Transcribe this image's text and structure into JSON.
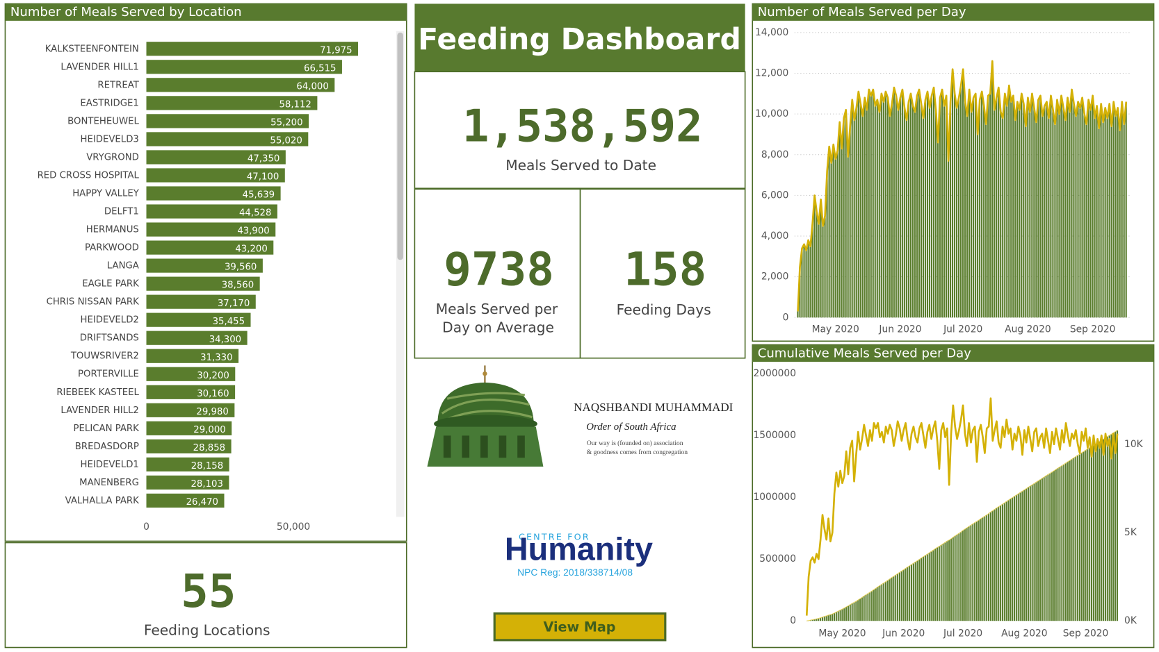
{
  "chart_data": [
    {
      "type": "bar",
      "orientation": "horizontal",
      "title": "Number of Meals Served by Location",
      "color": "#5a7d2d",
      "categories": [
        "KALKSTEENFONTEIN",
        "LAVENDER HILL1",
        "RETREAT",
        "EASTRIDGE1",
        "BONTEHEUWEL",
        "HEIDEVELD3",
        "VRYGROND",
        "RED CROSS HOSPITAL",
        "HAPPY VALLEY",
        "DELFT1",
        "HERMANUS",
        "PARKWOOD",
        "LANGA",
        "EAGLE PARK",
        "CHRIS NISSAN PARK",
        "HEIDEVELD2",
        "DRIFTSANDS",
        "TOUWSRIVER2",
        "PORTERVILLE",
        "RIEBEEK KASTEEL",
        "LAVENDER HILL2",
        "PELICAN PARK",
        "BREDASDORP",
        "HEIDEVELD1",
        "MANENBERG",
        "VALHALLA PARK"
      ],
      "values": [
        71975,
        66515,
        64000,
        58112,
        55200,
        55020,
        47350,
        47100,
        45639,
        44528,
        43900,
        43200,
        39560,
        38560,
        37170,
        35455,
        34300,
        31330,
        30200,
        30160,
        29980,
        29000,
        28858,
        28158,
        28103,
        26470
      ],
      "value_labels": [
        "71,975",
        "66,515",
        "64,000",
        "58,112",
        "55,200",
        "55,020",
        "47,350",
        "47,100",
        "45,639",
        "44,528",
        "43,900",
        "43,200",
        "39,560",
        "38,560",
        "37,170",
        "35,455",
        "34,300",
        "31,330",
        "30,200",
        "30,160",
        "29,980",
        "29,000",
        "28,858",
        "28,158",
        "28,103",
        "26,470"
      ],
      "xlim": [
        0,
        85000
      ],
      "xticks": [
        0,
        {
          "value": 50000,
          "label": "50,000"
        }
      ]
    },
    {
      "type": "combo",
      "title": "Number of Meals Served per Day",
      "grid": true,
      "categories": [
        null,
        null,
        null,
        null,
        null,
        null,
        null,
        null,
        null,
        null,
        null,
        null,
        null,
        null,
        null,
        null,
        null,
        null,
        "May 2020",
        null,
        null,
        null,
        null,
        null,
        null,
        null,
        null,
        null,
        null,
        null,
        null,
        null,
        null,
        null,
        null,
        null,
        null,
        null,
        null,
        null,
        null,
        null,
        null,
        null,
        null,
        null,
        null,
        null,
        null,
        "Jun 2020",
        null,
        null,
        null,
        null,
        null,
        null,
        null,
        null,
        null,
        null,
        null,
        null,
        null,
        null,
        null,
        null,
        null,
        null,
        null,
        null,
        null,
        null,
        null,
        null,
        null,
        null,
        null,
        null,
        null,
        "Jul 2020",
        null,
        null,
        null,
        null,
        null,
        null,
        null,
        null,
        null,
        null,
        null,
        null,
        null,
        null,
        null,
        null,
        null,
        null,
        null,
        null,
        null,
        null,
        null,
        null,
        null,
        null,
        null,
        null,
        null,
        null,
        "Aug 2020",
        null,
        null,
        null,
        null,
        null,
        null,
        null,
        null,
        null,
        null,
        null,
        null,
        null,
        null,
        null,
        null,
        null,
        null,
        null,
        null,
        null,
        null,
        null,
        null,
        null,
        null,
        null,
        null,
        null,
        null,
        "Sep 2020",
        null,
        null,
        null,
        null,
        null,
        null,
        null,
        null,
        null,
        null,
        null,
        null,
        null,
        null,
        null,
        null
      ],
      "ylim": [
        0,
        14000
      ],
      "yticks": [
        0,
        {
          "value": 2000,
          "label": "2,000"
        },
        {
          "value": 4000,
          "label": "4,000"
        },
        {
          "value": 6000,
          "label": "6,000"
        },
        {
          "value": 8000,
          "label": "8,000"
        },
        {
          "value": 10000,
          "label": "10,000"
        },
        {
          "value": 12000,
          "label": "12,000"
        },
        {
          "value": 14000,
          "label": "14,000"
        }
      ],
      "series": [
        {
          "type": "bar",
          "color": "#5a7d2d",
          "line_color": "#d4b106",
          "values": [
            300,
            2500,
            3400,
            3600,
            3300,
            3800,
            3500,
            4600,
            6000,
            5200,
            4600,
            5800,
            4500,
            5000,
            7200,
            8400,
            7600,
            8500,
            7800,
            8200,
            9600,
            8300,
            9800,
            10200,
            7900,
            9400,
            10700,
            9700,
            10300,
            11100,
            10500,
            9900,
            10800,
            10200,
            11200,
            10900,
            11200,
            10400,
            10700,
            10100,
            11000,
            10600,
            11100,
            10800,
            9900,
            10500,
            11300,
            10900,
            10200,
            10800,
            11200,
            10300,
            9700,
            10600,
            11000,
            10400,
            10100,
            10900,
            11200,
            10500,
            9800,
            10700,
            11100,
            10300,
            10900,
            11300,
            10200,
            8600,
            10800,
            11200,
            10400,
            10900,
            7700,
            10600,
            12200,
            11000,
            10300,
            10800,
            11400,
            12200,
            10600,
            9900,
            11200,
            10100,
            10800,
            11000,
            9000,
            10700,
            11100,
            10400,
            9500,
            10900,
            11000,
            12600,
            10200,
            10800,
            11300,
            10100,
            9800,
            11000,
            10400,
            11400,
            10600,
            10900,
            9700,
            10600,
            10200,
            11000,
            10500,
            9400,
            10800,
            10100,
            11000,
            10300,
            9600,
            10700,
            10900,
            9900,
            10400,
            10600,
            9800,
            10900,
            10200,
            9500,
            10700,
            10000,
            10900,
            10300,
            9700,
            10800,
            10100,
            11200,
            10500,
            9900,
            10600,
            10300,
            10800,
            10000,
            9500,
            10700,
            10200,
            10900,
            9800,
            10400,
            9300,
            10500,
            9600,
            10300,
            9800,
            10500,
            9400,
            10600,
            9900,
            10300,
            9200,
            10600,
            9500,
            10600
          ]
        }
      ]
    },
    {
      "type": "combo",
      "title": "Cumulative Meals Served per Day",
      "grid": false,
      "categories": [
        null,
        null,
        null,
        null,
        null,
        null,
        null,
        null,
        null,
        null,
        null,
        null,
        null,
        null,
        null,
        null,
        null,
        null,
        "May 2020",
        null,
        null,
        null,
        null,
        null,
        null,
        null,
        null,
        null,
        null,
        null,
        null,
        null,
        null,
        null,
        null,
        null,
        null,
        null,
        null,
        null,
        null,
        null,
        null,
        null,
        null,
        null,
        null,
        null,
        null,
        "Jun 2020",
        null,
        null,
        null,
        null,
        null,
        null,
        null,
        null,
        null,
        null,
        null,
        null,
        null,
        null,
        null,
        null,
        null,
        null,
        null,
        null,
        null,
        null,
        null,
        null,
        null,
        null,
        null,
        null,
        null,
        "Jul 2020",
        null,
        null,
        null,
        null,
        null,
        null,
        null,
        null,
        null,
        null,
        null,
        null,
        null,
        null,
        null,
        null,
        null,
        null,
        null,
        null,
        null,
        null,
        null,
        null,
        null,
        null,
        null,
        null,
        null,
        null,
        "Aug 2020",
        null,
        null,
        null,
        null,
        null,
        null,
        null,
        null,
        null,
        null,
        null,
        null,
        null,
        null,
        null,
        null,
        null,
        null,
        null,
        null,
        null,
        null,
        null,
        null,
        null,
        null,
        null,
        null,
        null,
        null,
        "Sep 2020",
        null,
        null,
        null,
        null,
        null,
        null,
        null,
        null,
        null,
        null,
        null,
        null,
        null,
        null,
        null,
        null
      ],
      "ylim": [
        0,
        2000000
      ],
      "yticks": [
        0,
        500000,
        1000000,
        1500000,
        2000000
      ],
      "y2lim": [
        0,
        14000
      ],
      "y2ticks": [
        {
          "value": 0,
          "label": "0K"
        },
        {
          "value": 5000,
          "label": "5K"
        },
        {
          "value": 10000,
          "label": "10K"
        }
      ],
      "series": [
        {
          "type": "bar",
          "color": "#5a7d2d",
          "line_color": "#e3cf5a",
          "values": [
            300,
            2800,
            6200,
            9800,
            13100,
            16900,
            20400,
            25000,
            31000,
            36200,
            40800,
            46600,
            51100,
            56100,
            63300,
            71700,
            79300,
            87800,
            95600,
            103800,
            113400,
            121700,
            131500,
            141700,
            149600,
            159000,
            169700,
            179400,
            189700,
            200800,
            211300,
            221200,
            232000,
            242200,
            253400,
            264300,
            275500,
            285900,
            296600,
            306700,
            317700,
            328300,
            339400,
            350200,
            360100,
            370600,
            381900,
            392800,
            403000,
            413800,
            425000,
            435300,
            445000,
            455600,
            466600,
            477000,
            487100,
            498000,
            509200,
            519700,
            529500,
            540200,
            551300,
            561600,
            572500,
            583800,
            594000,
            602600,
            613400,
            624600,
            635000,
            645900,
            653600,
            664200,
            676400,
            687400,
            697700,
            708500,
            719900,
            732100,
            742700,
            752600,
            763800,
            773900,
            784700,
            795700,
            804700,
            815400,
            826500,
            836900,
            846400,
            857300,
            868300,
            880900,
            891100,
            901900,
            913200,
            923300,
            933100,
            944100,
            954500,
            965900,
            976500,
            987400,
            997100,
            1007700,
            1017900,
            1028900,
            1039400,
            1048800,
            1059600,
            1069700,
            1080700,
            1091000,
            1100600,
            1111300,
            1122200,
            1132100,
            1142500,
            1153100,
            1162900,
            1173800,
            1184000,
            1193500,
            1204200,
            1214200,
            1225100,
            1235400,
            1245100,
            1255900,
            1266000,
            1277200,
            1287700,
            1297600,
            1308200,
            1318500,
            1329300,
            1339300,
            1348800,
            1359500,
            1369700,
            1380600,
            1390400,
            1400800,
            1410100,
            1420600,
            1430200,
            1440500,
            1450300,
            1460800,
            1470200,
            1480800,
            1490700,
            1501000,
            1510200,
            1520800,
            1530300,
            1540900
          ]
        },
        {
          "type": "line",
          "axis": "y2",
          "color": "#d4b106",
          "values": [
            300,
            2500,
            3400,
            3600,
            3300,
            3800,
            3500,
            4600,
            6000,
            5200,
            4600,
            5800,
            4500,
            5000,
            7200,
            8400,
            7600,
            8500,
            7800,
            8200,
            9600,
            8300,
            9800,
            10200,
            7900,
            9400,
            10700,
            9700,
            10300,
            11100,
            10500,
            9900,
            10800,
            10200,
            11200,
            10900,
            11200,
            10400,
            10700,
            10100,
            11000,
            10600,
            11100,
            10800,
            9900,
            10500,
            11300,
            10900,
            10200,
            10800,
            11200,
            10300,
            9700,
            10600,
            11000,
            10400,
            10100,
            10900,
            11200,
            10500,
            9800,
            10700,
            11100,
            10300,
            10900,
            11300,
            10200,
            8600,
            10800,
            11200,
            10400,
            10900,
            7700,
            10600,
            12200,
            11000,
            10300,
            10800,
            11400,
            12200,
            10600,
            9900,
            11200,
            10100,
            10800,
            11000,
            9000,
            10700,
            11100,
            10400,
            9500,
            10900,
            11000,
            12600,
            10200,
            10800,
            11300,
            10100,
            9800,
            11000,
            10400,
            11400,
            10600,
            10900,
            9700,
            10600,
            10200,
            11000,
            10500,
            9400,
            10800,
            10100,
            11000,
            10300,
            9600,
            10700,
            10900,
            9900,
            10400,
            10600,
            9800,
            10900,
            10200,
            9500,
            10700,
            10000,
            10900,
            10300,
            9700,
            10800,
            10100,
            11200,
            10500,
            9900,
            10600,
            10300,
            10800,
            10000,
            9500,
            10700,
            10200,
            10900,
            9800,
            10400,
            9300,
            10500,
            9600,
            10300,
            9800,
            10500,
            9400,
            10600,
            9900,
            10300,
            9200,
            10600,
            9500,
            10600
          ]
        }
      ]
    }
  ],
  "dashboard": {
    "title": "Feeding Dashboard",
    "kpis": [
      {
        "value": "1,538,592",
        "label": [
          "Meals Served to Date"
        ]
      },
      {
        "value": "9738",
        "label": [
          "Meals Served  per",
          "Day on Average"
        ]
      },
      {
        "value": "158",
        "label": [
          "Feeding Days"
        ]
      },
      {
        "value": "55",
        "label": [
          "Feeding Locations"
        ]
      }
    ],
    "logo": {
      "org": "NAQSHBANDI MUHAMMADI",
      "subtitle": "Order of South Africa",
      "motto": [
        "Our way is (founded on) association",
        "& goodness comes from congregation"
      ]
    },
    "partner": {
      "line1": "CENTRE FOR",
      "name": "Humanity",
      "reg": "NPC Reg: 2018/338714/08"
    },
    "button": "View Map"
  }
}
